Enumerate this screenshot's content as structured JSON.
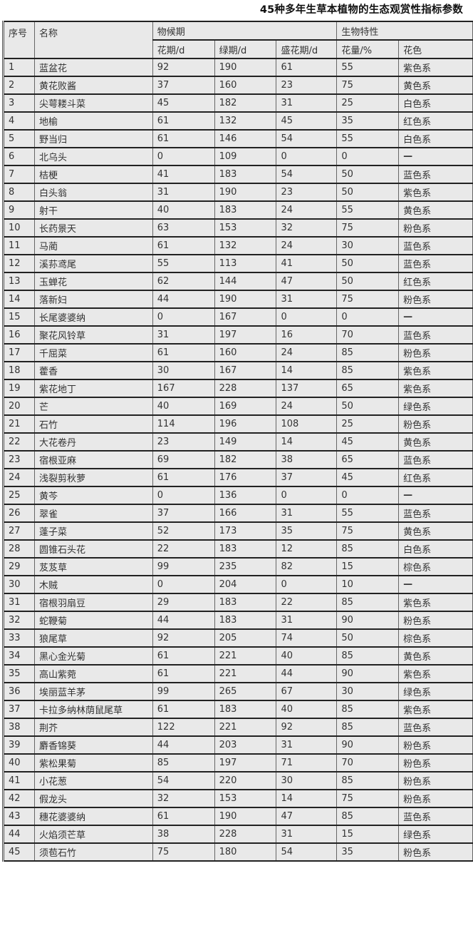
{
  "title": "45种多年生草本植物的生态观赏性指标参数",
  "header": {
    "index": "序号",
    "name": "名称",
    "phenology": "物候期",
    "biology": "生物特性",
    "flowering": "花期/d",
    "green": "绿期/d",
    "peak": "盛花期/d",
    "amount": "花量/%",
    "color": "花色"
  },
  "rows": [
    [
      "1",
      "蓝盆花",
      "92",
      "190",
      "61",
      "55",
      "紫色系"
    ],
    [
      "2",
      "黄花败酱",
      "37",
      "160",
      "23",
      "75",
      "黄色系"
    ],
    [
      "3",
      "尖萼耧斗菜",
      "45",
      "182",
      "31",
      "25",
      "白色系"
    ],
    [
      "4",
      "地榆",
      "61",
      "132",
      "45",
      "35",
      "红色系"
    ],
    [
      "5",
      "野当归",
      "61",
      "146",
      "54",
      "55",
      "白色系"
    ],
    [
      "6",
      "北乌头",
      "0",
      "109",
      "0",
      "0",
      "—"
    ],
    [
      "7",
      "桔梗",
      "41",
      "183",
      "54",
      "50",
      "蓝色系"
    ],
    [
      "8",
      "白头翁",
      "31",
      "190",
      "23",
      "50",
      "紫色系"
    ],
    [
      "9",
      "射干",
      "40",
      "183",
      "24",
      "55",
      "黄色系"
    ],
    [
      "10",
      "长药景天",
      "63",
      "153",
      "32",
      "75",
      "粉色系"
    ],
    [
      "11",
      "马蔺",
      "61",
      "132",
      "24",
      "30",
      "蓝色系"
    ],
    [
      "12",
      "溪荪鸢尾",
      "55",
      "113",
      "41",
      "50",
      "蓝色系"
    ],
    [
      "13",
      "玉蝉花",
      "62",
      "144",
      "47",
      "50",
      "红色系"
    ],
    [
      "14",
      "落新妇",
      "44",
      "190",
      "31",
      "75",
      "粉色系"
    ],
    [
      "15",
      "长尾婆婆纳",
      "0",
      "167",
      "0",
      "0",
      "—"
    ],
    [
      "16",
      "聚花风铃草",
      "31",
      "197",
      "16",
      "70",
      "蓝色系"
    ],
    [
      "17",
      "千屈菜",
      "61",
      "160",
      "24",
      "85",
      "粉色系"
    ],
    [
      "18",
      "藿香",
      "30",
      "167",
      "14",
      "85",
      "紫色系"
    ],
    [
      "19",
      "紫花地丁",
      "167",
      "228",
      "137",
      "65",
      "紫色系"
    ],
    [
      "20",
      "芒",
      "40",
      "169",
      "24",
      "50",
      "绿色系"
    ],
    [
      "21",
      "石竹",
      "114",
      "196",
      "108",
      "25",
      "粉色系"
    ],
    [
      "22",
      "大花卷丹",
      "23",
      "149",
      "14",
      "45",
      "黄色系"
    ],
    [
      "23",
      "宿根亚麻",
      "69",
      "182",
      "38",
      "65",
      "蓝色系"
    ],
    [
      "24",
      "浅裂剪秋萝",
      "61",
      "176",
      "37",
      "45",
      "红色系"
    ],
    [
      "25",
      "黄芩",
      "0",
      "136",
      "0",
      "0",
      "—"
    ],
    [
      "26",
      "翠雀",
      "37",
      "166",
      "31",
      "55",
      "蓝色系"
    ],
    [
      "27",
      "蓬子菜",
      "52",
      "173",
      "35",
      "75",
      "黄色系"
    ],
    [
      "28",
      "圆锥石头花",
      "22",
      "183",
      "12",
      "85",
      "白色系"
    ],
    [
      "29",
      "芨芨草",
      "99",
      "235",
      "82",
      "15",
      "棕色系"
    ],
    [
      "30",
      "木贼",
      "0",
      "204",
      "0",
      "10",
      "—"
    ],
    [
      "31",
      "宿根羽扇豆",
      "29",
      "183",
      "22",
      "85",
      "紫色系"
    ],
    [
      "32",
      "蛇鞭菊",
      "44",
      "183",
      "31",
      "90",
      "粉色系"
    ],
    [
      "33",
      "狼尾草",
      "92",
      "205",
      "74",
      "50",
      "棕色系"
    ],
    [
      "34",
      "黑心金光菊",
      "61",
      "221",
      "40",
      "85",
      "黄色系"
    ],
    [
      "35",
      "高山紫菀",
      "61",
      "221",
      "44",
      "90",
      "紫色系"
    ],
    [
      "36",
      "埃丽蓝羊茅",
      "99",
      "265",
      "67",
      "30",
      "绿色系"
    ],
    [
      "37",
      "卡拉多纳林荫鼠尾草",
      "61",
      "183",
      "40",
      "85",
      "紫色系"
    ],
    [
      "38",
      "荆芥",
      "122",
      "221",
      "92",
      "85",
      "蓝色系"
    ],
    [
      "39",
      "麝香锦葵",
      "44",
      "203",
      "31",
      "90",
      "粉色系"
    ],
    [
      "40",
      "紫松果菊",
      "85",
      "197",
      "71",
      "70",
      "粉色系"
    ],
    [
      "41",
      "小花葱",
      "54",
      "220",
      "30",
      "85",
      "粉色系"
    ],
    [
      "42",
      "假龙头",
      "32",
      "153",
      "14",
      "75",
      "粉色系"
    ],
    [
      "43",
      "穗花婆婆纳",
      "61",
      "190",
      "47",
      "85",
      "蓝色系"
    ],
    [
      "44",
      "火焰须芒草",
      "38",
      "228",
      "31",
      "15",
      "绿色系"
    ],
    [
      "45",
      "须苞石竹",
      "75",
      "180",
      "54",
      "35",
      "粉色系"
    ]
  ]
}
